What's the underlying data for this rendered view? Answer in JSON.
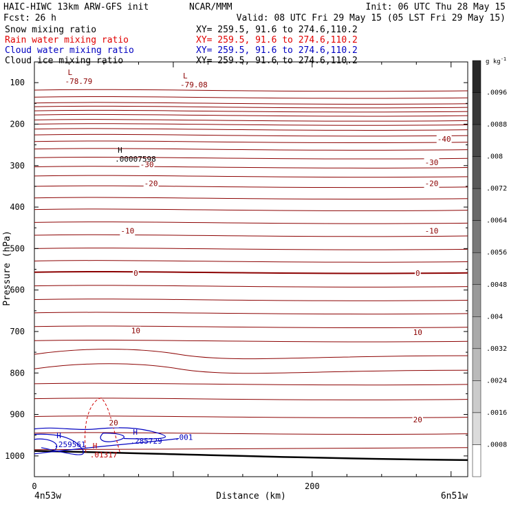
{
  "header": {
    "model": "HAIC-HIWC 13km ARW-GFS init",
    "org": "NCAR/MMM",
    "init": "Init: 06 UTC Thu 28 May 15",
    "fcst_label": "Fcst:",
    "fcst_value": "26 h",
    "valid": "Valid: 08 UTC Fri 29 May 15 (05 LST Fri 29 May 15)",
    "fields": [
      {
        "name": "Snow mixing ratio",
        "xy": "XY= 259.5, 91.6 to 274.6,110.2",
        "color": "#000000"
      },
      {
        "name": "Rain water mixing ratio",
        "xy": "XY= 259.5, 91.6 to 274.6,110.2",
        "color": "#e00000"
      },
      {
        "name": "Cloud water mixing ratio",
        "xy": "XY= 259.5, 91.6 to 274.6,110.2",
        "color": "#0000c0"
      },
      {
        "name": "Cloud ice mixing ratio",
        "xy": "XY= 259.5, 91.6 to 274.6,110.2",
        "color": "#000000"
      }
    ]
  },
  "chart_data": {
    "type": "contour cross-section",
    "ylabel": "Pressure (hPa)",
    "xlabel": "Distance (km)",
    "x_ticks": [
      0,
      200
    ],
    "y_ticks": [
      100,
      200,
      300,
      400,
      500,
      600,
      700,
      800,
      900,
      1000
    ],
    "xlim": [
      0,
      312
    ],
    "ylim": [
      50,
      1050
    ],
    "x_endpoints": [
      "4n53w",
      "6n51w"
    ],
    "temperature_labels": [
      {
        "text": "-40",
        "x": 295,
        "p": 236
      },
      {
        "text": "-30",
        "x": 286,
        "p": 292
      },
      {
        "text": "-30",
        "x": 81,
        "p": 297
      },
      {
        "text": "-20",
        "x": 84,
        "p": 343
      },
      {
        "text": "-20",
        "x": 286,
        "p": 343
      },
      {
        "text": "-10",
        "x": 67,
        "p": 457
      },
      {
        "text": "-10",
        "x": 286,
        "p": 457
      },
      {
        "text": "0",
        "x": 73,
        "p": 559
      },
      {
        "text": "0",
        "x": 276,
        "p": 559
      },
      {
        "text": "10",
        "x": 73,
        "p": 698
      },
      {
        "text": "10",
        "x": 276,
        "p": 702
      },
      {
        "text": "20",
        "x": 57,
        "p": 920
      },
      {
        "text": "20",
        "x": 276,
        "p": 912
      }
    ],
    "extrema_labels": [
      {
        "mark": "L",
        "value": "-78.79",
        "x": 24,
        "p": 100,
        "color": "#8b0000"
      },
      {
        "mark": "L",
        "value": "-79.08",
        "x": 107,
        "p": 108,
        "color": "#8b0000"
      },
      {
        "mark": "H",
        "value": ".00007598",
        "x": 60,
        "p": 287,
        "color": "#000000"
      },
      {
        "mark": "H",
        "value": ".259561",
        "x": 16,
        "p": 975,
        "color": "#0000c0"
      },
      {
        "mark": "H",
        "value": ".285729",
        "x": 71,
        "p": 967,
        "color": "#0000c0"
      },
      {
        "mark": "H",
        "value": ".01317",
        "x": 42,
        "p": 1000,
        "color": "#c00000"
      }
    ],
    "cloud_water_labels": [
      {
        "text": ".001",
        "x": 101,
        "p": 955
      }
    ],
    "colorbar": {
      "unit": "g kg",
      "unit_exp": "-1",
      "labels": [
        ".0096",
        ".0088",
        ".008",
        ".0072",
        ".0064",
        ".0056",
        ".0048",
        ".004",
        ".0032",
        ".0024",
        ".0016",
        ".0008"
      ]
    }
  }
}
